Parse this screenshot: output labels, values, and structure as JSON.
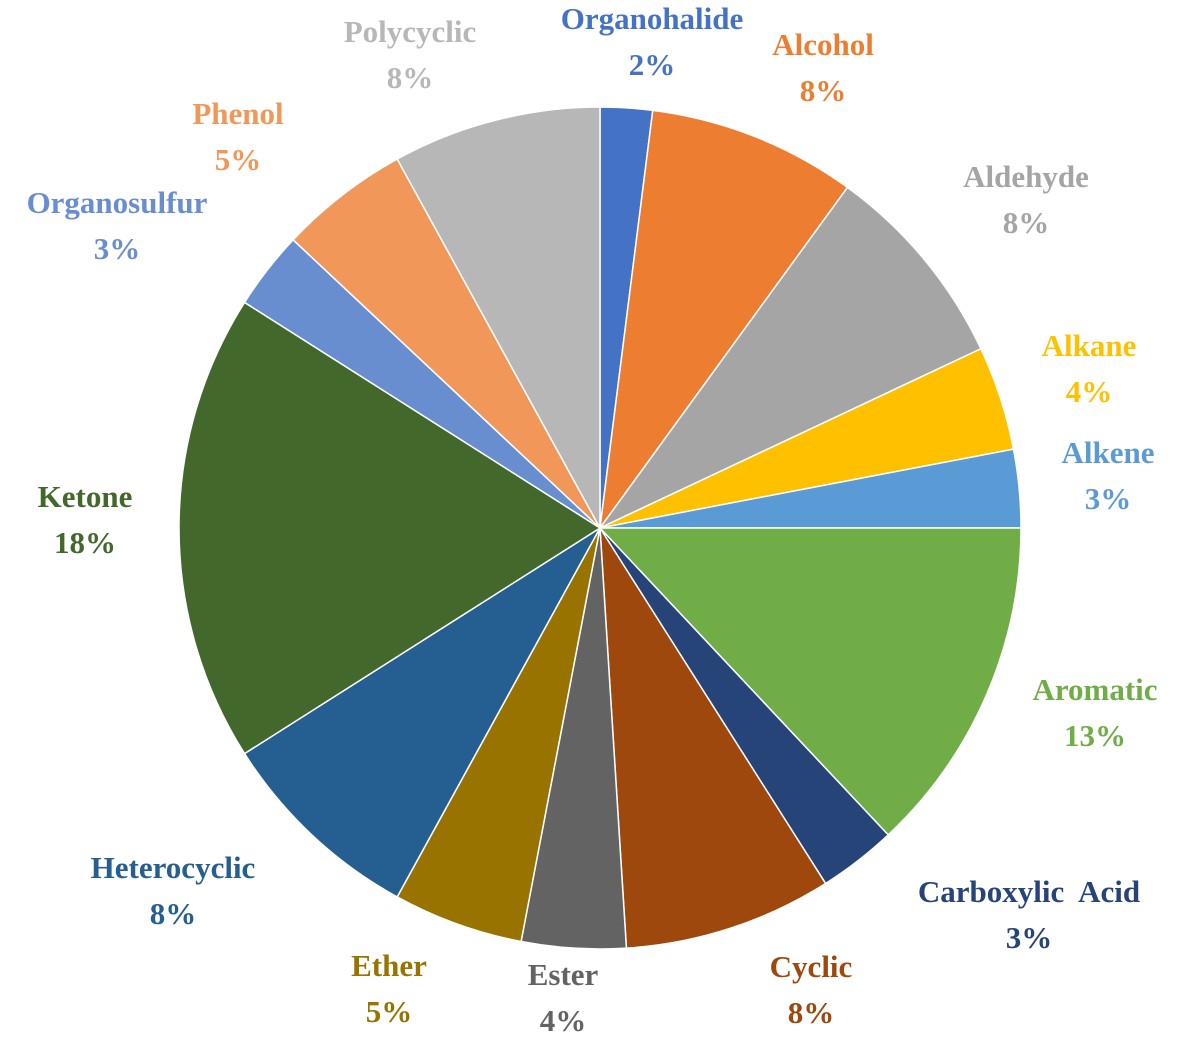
{
  "chart_data": {
    "type": "pie",
    "title": "",
    "start_angle_deg": 0,
    "direction": "clockwise",
    "legend": "none",
    "slices": [
      {
        "label": "Organohalide",
        "percent_label": "2%",
        "value": 2,
        "color": "#4472C4",
        "label_color": "#4472C4"
      },
      {
        "label": "Alcohol",
        "percent_label": "8%",
        "value": 8,
        "color": "#ED7D31",
        "label_color": "#ED7D31"
      },
      {
        "label": "Aldehyde",
        "percent_label": "8%",
        "value": 8,
        "color": "#A5A5A5",
        "label_color": "#A5A5A5"
      },
      {
        "label": "Alkane",
        "percent_label": "4%",
        "value": 4,
        "color": "#FFC000",
        "label_color": "#FFC000"
      },
      {
        "label": "Alkene",
        "percent_label": "3%",
        "value": 3,
        "color": "#5B9BD5",
        "label_color": "#5B9BD5"
      },
      {
        "label": "Aromatic",
        "percent_label": "13%",
        "value": 13,
        "color": "#70AD47",
        "label_color": "#70AD47"
      },
      {
        "label": "Carboxylic  Acid",
        "percent_label": "3%",
        "value": 3,
        "color": "#264478",
        "label_color": "#264478"
      },
      {
        "label": "Cyclic",
        "percent_label": "8%",
        "value": 8,
        "color": "#9E480E",
        "label_color": "#9E480E"
      },
      {
        "label": "Ester",
        "percent_label": "4%",
        "value": 4,
        "color": "#636363",
        "label_color": "#636363"
      },
      {
        "label": "Ether",
        "percent_label": "5%",
        "value": 5,
        "color": "#997300",
        "label_color": "#997300"
      },
      {
        "label": "Heterocyclic",
        "percent_label": "8%",
        "value": 8,
        "color": "#255E91",
        "label_color": "#255E91"
      },
      {
        "label": "Ketone",
        "percent_label": "18%",
        "value": 18,
        "color": "#43682B",
        "label_color": "#43682B"
      },
      {
        "label": "Organosulfur",
        "percent_label": "3%",
        "value": 3,
        "color": "#698ED0",
        "label_color": "#698ED0"
      },
      {
        "label": "Phenol",
        "percent_label": "5%",
        "value": 5,
        "color": "#F1975A",
        "label_color": "#F1975A"
      },
      {
        "label": "Polycyclic",
        "percent_label": "8%",
        "value": 8,
        "color": "#B7B7B7",
        "label_color": "#B7B7B7"
      }
    ]
  }
}
